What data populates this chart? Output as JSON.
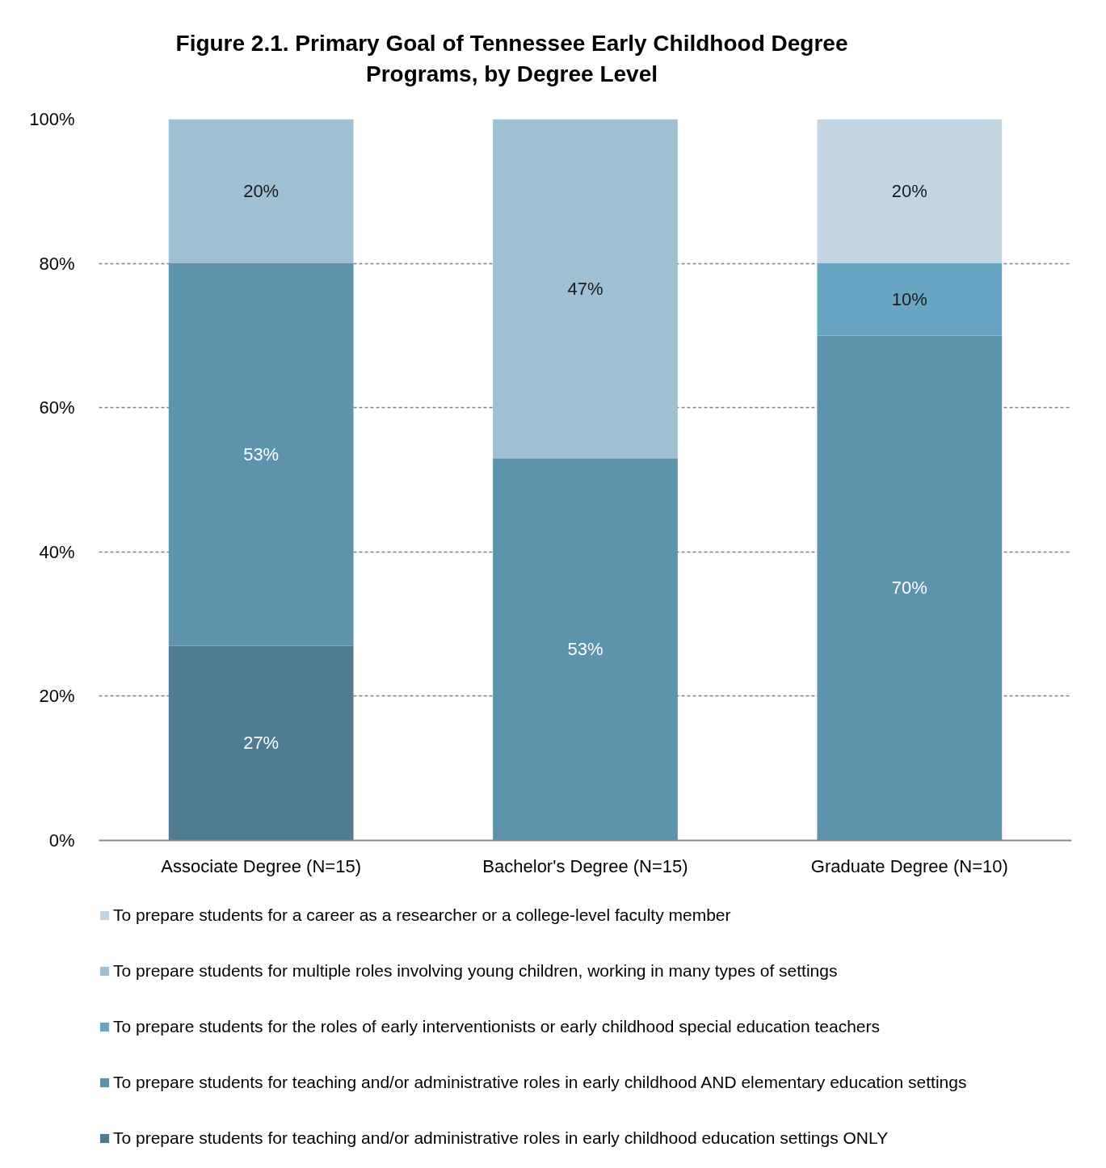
{
  "chart_data": {
    "type": "bar",
    "title": "Figure 2.1. Primary Goal of Tennessee Early Childhood Degree Programs, by Degree Level",
    "categories": [
      "Associate Degree (N=15)",
      "Bachelor's Degree (N=15)",
      "Graduate Degree (N=10)"
    ],
    "stacked": true,
    "series": [
      {
        "name": "To prepare students for teaching and/or administrative roles in early childhood education settings ONLY",
        "color": "#4f7c91",
        "values": [
          27,
          null,
          null
        ],
        "value_labels": [
          "27%",
          null,
          null
        ]
      },
      {
        "name": "To prepare students for teaching and/or administrative roles in early childhood AND elementary education settings",
        "color": "#5d93ac",
        "values": [
          53,
          53,
          70
        ],
        "value_labels": [
          "53%",
          "53%",
          "70%"
        ]
      },
      {
        "name": "To prepare students for the roles of early interventionists or early childhood special education teachers",
        "color": "#68a5c2",
        "values": [
          null,
          null,
          10
        ],
        "value_labels": [
          null,
          null,
          "10%"
        ]
      },
      {
        "name": "To prepare students for multiple roles involving young children, working in many types of settings",
        "color": "#9fbfd2",
        "values": [
          20,
          47,
          null
        ],
        "value_labels": [
          "20%",
          "47%",
          null
        ]
      },
      {
        "name": "To prepare students for a career as a researcher or a college-level faculty member",
        "color": "#c3d5e0",
        "values": [
          null,
          null,
          20
        ],
        "value_labels": [
          null,
          null,
          "20%"
        ]
      }
    ],
    "ylim": [
      0,
      100
    ],
    "yticks": [
      {
        "value": 0,
        "label": "0%"
      },
      {
        "value": 20,
        "label": "20%"
      },
      {
        "value": 40,
        "label": "40%"
      },
      {
        "value": 60,
        "label": "60%"
      },
      {
        "value": 80,
        "label": "80%"
      },
      {
        "value": 100,
        "label": "100%"
      }
    ],
    "grid": "y",
    "legend": "bottom"
  }
}
